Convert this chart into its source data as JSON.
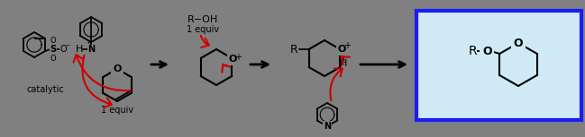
{
  "background_color": "#808080",
  "figure_width": 6.49,
  "figure_height": 1.53,
  "dpi": 100,
  "arrow_color": "#CC0000",
  "black": "#000000",
  "gray": "#808080",
  "light_blue": "#d0eaf5",
  "blue_border": "#1a1aff",
  "catalytic_text": "catalytic",
  "one_equiv_bottom": "1 equiv",
  "one_equiv_top": "1 equiv",
  "r_oh": "R-OH"
}
